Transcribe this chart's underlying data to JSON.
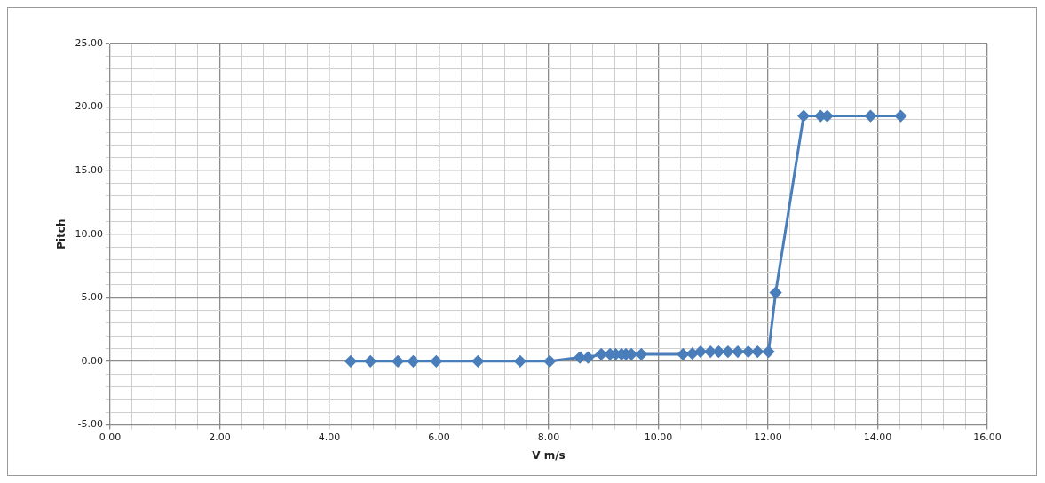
{
  "chart_data": {
    "type": "line",
    "xlabel": "V m/s",
    "ylabel": "Pitch",
    "marker": "diamond",
    "grid": true,
    "legend": false,
    "xlim": [
      0,
      16
    ],
    "ylim": [
      -5,
      25
    ],
    "xticks": [
      {
        "value": 0,
        "label": "0.00"
      },
      {
        "value": 0.4,
        "label": null
      },
      {
        "value": 0.8,
        "label": null
      },
      {
        "value": 1.2,
        "label": null
      },
      {
        "value": 1.6,
        "label": null
      },
      {
        "value": 2,
        "label": "2.00"
      },
      {
        "value": 2.4,
        "label": null
      },
      {
        "value": 2.8,
        "label": null
      },
      {
        "value": 3.2,
        "label": null
      },
      {
        "value": 3.6,
        "label": null
      },
      {
        "value": 4,
        "label": "4.00"
      },
      {
        "value": 4.4,
        "label": null
      },
      {
        "value": 4.8,
        "label": null
      },
      {
        "value": 5.2,
        "label": null
      },
      {
        "value": 5.6,
        "label": null
      },
      {
        "value": 6,
        "label": "6.00"
      },
      {
        "value": 6.4,
        "label": null
      },
      {
        "value": 6.8,
        "label": null
      },
      {
        "value": 7.2,
        "label": null
      },
      {
        "value": 7.6,
        "label": null
      },
      {
        "value": 8,
        "label": "8.00"
      },
      {
        "value": 8.4,
        "label": null
      },
      {
        "value": 8.8,
        "label": null
      },
      {
        "value": 9.2,
        "label": null
      },
      {
        "value": 9.6,
        "label": null
      },
      {
        "value": 10,
        "label": "10.00"
      },
      {
        "value": 10.4,
        "label": null
      },
      {
        "value": 10.8,
        "label": null
      },
      {
        "value": 11.2,
        "label": null
      },
      {
        "value": 11.6,
        "label": null
      },
      {
        "value": 12,
        "label": "12.00"
      },
      {
        "value": 12.4,
        "label": null
      },
      {
        "value": 12.8,
        "label": null
      },
      {
        "value": 13.2,
        "label": null
      },
      {
        "value": 13.6,
        "label": null
      },
      {
        "value": 14,
        "label": "14.00"
      },
      {
        "value": 14.4,
        "label": null
      },
      {
        "value": 14.8,
        "label": null
      },
      {
        "value": 15.2,
        "label": null
      },
      {
        "value": 15.6,
        "label": null
      },
      {
        "value": 16,
        "label": "16.00"
      }
    ],
    "yticks": [
      {
        "value": -5,
        "label": "-5.00"
      },
      {
        "value": -4,
        "label": null
      },
      {
        "value": -3,
        "label": null
      },
      {
        "value": -2,
        "label": null
      },
      {
        "value": -1,
        "label": null
      },
      {
        "value": 0,
        "label": "0.00"
      },
      {
        "value": 1,
        "label": null
      },
      {
        "value": 2,
        "label": null
      },
      {
        "value": 3,
        "label": null
      },
      {
        "value": 4,
        "label": null
      },
      {
        "value": 5,
        "label": "5.00"
      },
      {
        "value": 6,
        "label": null
      },
      {
        "value": 7,
        "label": null
      },
      {
        "value": 8,
        "label": null
      },
      {
        "value": 9,
        "label": null
      },
      {
        "value": 10,
        "label": "10.00"
      },
      {
        "value": 11,
        "label": null
      },
      {
        "value": 12,
        "label": null
      },
      {
        "value": 13,
        "label": null
      },
      {
        "value": 14,
        "label": null
      },
      {
        "value": 15,
        "label": "15.00"
      },
      {
        "value": 16,
        "label": null
      },
      {
        "value": 17,
        "label": null
      },
      {
        "value": 18,
        "label": null
      },
      {
        "value": 19,
        "label": null
      },
      {
        "value": 20,
        "label": "20.00"
      },
      {
        "value": 21,
        "label": null
      },
      {
        "value": 22,
        "label": null
      },
      {
        "value": 23,
        "label": null
      },
      {
        "value": 24,
        "label": null
      },
      {
        "value": 25,
        "label": "25.00"
      }
    ],
    "series": [
      {
        "color": "#4a7ebb",
        "x": [
          4.39,
          4.75,
          5.25,
          5.53,
          5.95,
          6.71,
          7.48,
          8.02,
          8.57,
          8.72,
          8.96,
          9.12,
          9.22,
          9.33,
          9.41,
          9.51,
          9.69,
          10.45,
          10.62,
          10.77,
          10.95,
          11.1,
          11.27,
          11.45,
          11.64,
          11.81,
          12.01,
          12.14,
          12.65,
          12.96,
          13.08,
          13.87,
          14.42
        ],
        "values": [
          0,
          0,
          0,
          0,
          0,
          0,
          0,
          0,
          0.3,
          0.3,
          0.55,
          0.55,
          0.55,
          0.55,
          0.55,
          0.55,
          0.55,
          0.55,
          0.6,
          0.75,
          0.75,
          0.75,
          0.75,
          0.75,
          0.75,
          0.75,
          0.75,
          5.4,
          19.3,
          19.3,
          19.3,
          19.3,
          19.3
        ]
      }
    ]
  }
}
